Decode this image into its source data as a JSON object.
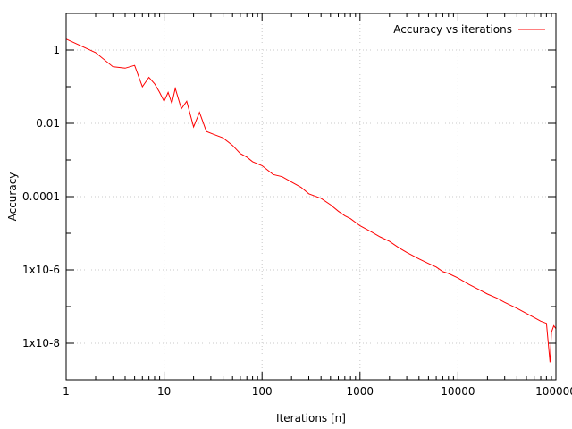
{
  "chart_data": {
    "type": "line",
    "title": "",
    "xlabel": "Iterations [n]",
    "ylabel": "Accuracy",
    "x_scale": "log",
    "y_scale": "log",
    "xlim": [
      1,
      100000
    ],
    "ylim": [
      1e-09,
      10
    ],
    "x_ticks": [
      {
        "value": 1,
        "label": "1"
      },
      {
        "value": 10,
        "label": "10"
      },
      {
        "value": 100,
        "label": "100"
      },
      {
        "value": 1000,
        "label": "1000"
      },
      {
        "value": 10000,
        "label": "10000"
      },
      {
        "value": 100000,
        "label": "100000"
      }
    ],
    "y_ticks": [
      {
        "value": 1,
        "label": "1"
      },
      {
        "value": 0.01,
        "label": "0.01"
      },
      {
        "value": 0.0001,
        "label": "0.0001"
      },
      {
        "value": 1e-06,
        "label": "1x10-6"
      },
      {
        "value": 1e-08,
        "label": "1x10-8"
      }
    ],
    "grid": true,
    "legend_position": "top-right",
    "series": [
      {
        "name": "Accuracy vs iterations",
        "color": "#ff0000",
        "x": [
          1,
          2,
          3,
          4,
          5,
          6,
          7,
          8,
          9,
          10,
          11,
          12,
          13,
          15,
          17,
          20,
          23,
          27,
          32,
          40,
          50,
          60,
          70,
          80,
          100,
          130,
          160,
          200,
          250,
          300,
          400,
          500,
          600,
          700,
          800,
          1000,
          1300,
          1600,
          2000,
          2500,
          3000,
          4000,
          5000,
          6000,
          7000,
          8000,
          10000,
          13000,
          16000,
          20000,
          25000,
          30000,
          40000,
          50000,
          60000,
          70000,
          80000,
          87000,
          90000,
          95000,
          100000
        ],
        "y": [
          2.0,
          0.85,
          0.35,
          0.32,
          0.38,
          0.1,
          0.18,
          0.12,
          0.07,
          0.04,
          0.07,
          0.035,
          0.09,
          0.025,
          0.04,
          0.008,
          0.02,
          0.006,
          0.005,
          0.004,
          0.0025,
          0.0015,
          0.0012,
          0.0009,
          0.0007,
          0.0004,
          0.00035,
          0.00025,
          0.00018,
          0.00012,
          9e-05,
          6e-05,
          4e-05,
          3e-05,
          2.5e-05,
          1.6e-05,
          1.1e-05,
          8e-06,
          6e-06,
          4e-06,
          3e-06,
          2e-06,
          1.5e-06,
          1.2e-06,
          9e-07,
          8e-07,
          6e-07,
          4e-07,
          3e-07,
          2.2e-07,
          1.7e-07,
          1.3e-07,
          9e-08,
          6.5e-08,
          5e-08,
          4e-08,
          3.5e-08,
          3e-09,
          2e-08,
          3e-08,
          2.5e-08
        ]
      }
    ]
  }
}
